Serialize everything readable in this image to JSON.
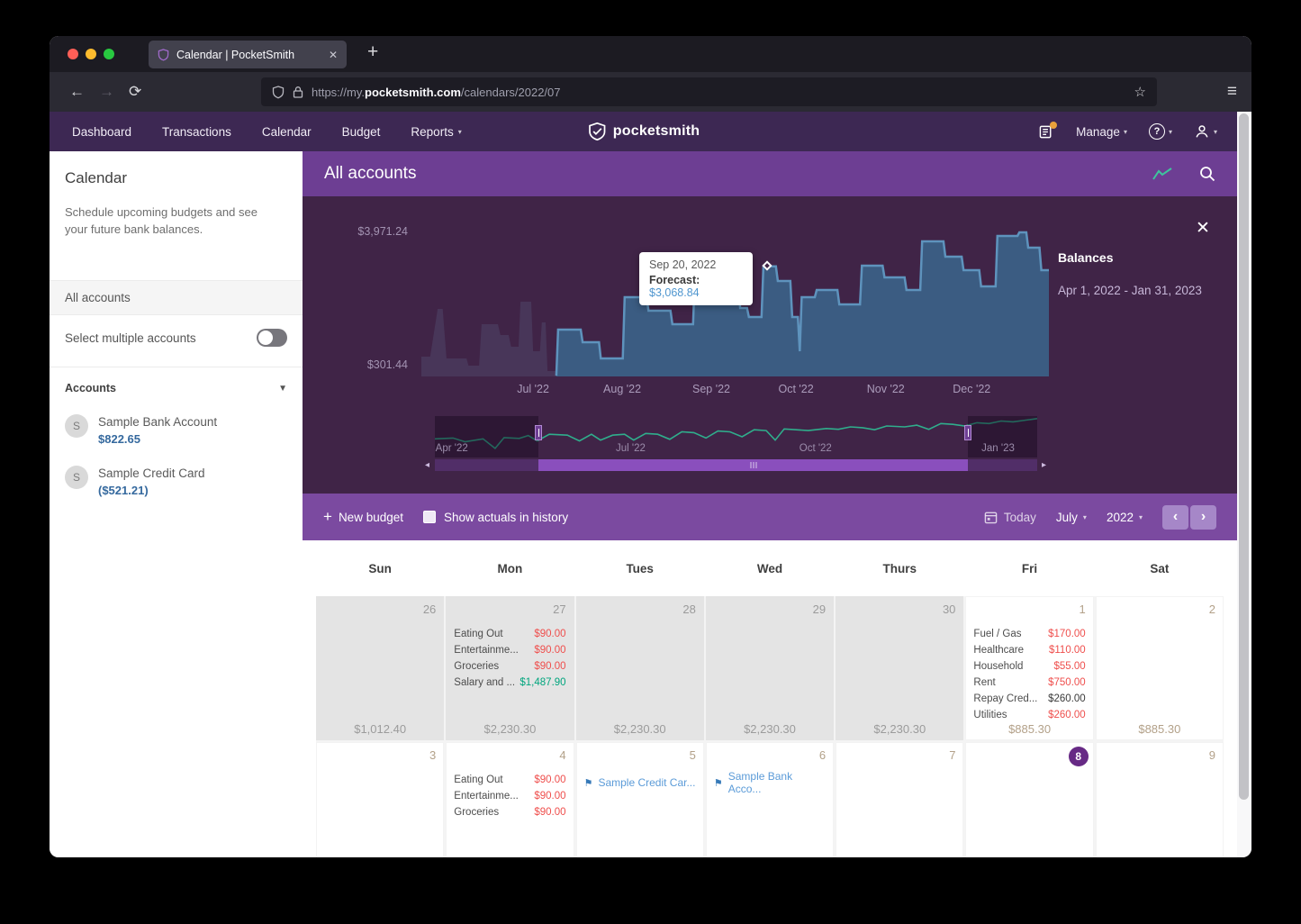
{
  "browser": {
    "tab_title": "Calendar | PocketSmith",
    "tab_close": "✕",
    "url_prefix": "https://my.",
    "url_domain": "pocketsmith.com",
    "url_path": "/calendars/2022/07"
  },
  "nav": {
    "items": [
      "Dashboard",
      "Transactions",
      "Calendar",
      "Budget",
      "Reports"
    ],
    "brand": "pocketsmith",
    "manage_label": "Manage",
    "help_label": "?"
  },
  "sidebar": {
    "title": "Calendar",
    "description": "Schedule upcoming budgets and see your future bank balances.",
    "all_accounts_label": "All accounts",
    "multi_select_label": "Select multiple accounts",
    "accounts_header": "Accounts",
    "accounts": [
      {
        "initial": "S",
        "name": "Sample Bank Account",
        "balance": "$822.65"
      },
      {
        "initial": "S",
        "name": "Sample Credit Card",
        "balance": "($521.21)"
      }
    ]
  },
  "chart_panel": {
    "title": "All accounts",
    "legend_title": "Balances",
    "legend_range": "Apr 1, 2022 - Jan 31, 2023",
    "close_glyph": "✕"
  },
  "chart_data": {
    "type": "area",
    "title": "All accounts balance forecast",
    "ylim": [
      301.44,
      3971.24
    ],
    "y_tick_labels": [
      "$3,971.24",
      "$301.44"
    ],
    "x_ticks": [
      {
        "label": "Jul '22",
        "f": 0.178
      },
      {
        "label": "Aug '22",
        "f": 0.32
      },
      {
        "label": "Sep '22",
        "f": 0.462
      },
      {
        "label": "Oct '22",
        "f": 0.597
      },
      {
        "label": "Nov '22",
        "f": 0.74
      },
      {
        "label": "Dec '22",
        "f": 0.877
      }
    ],
    "series": [
      {
        "name": "History",
        "fill": "#483659",
        "points": [
          [
            0.0,
            800
          ],
          [
            0.014,
            800
          ],
          [
            0.026,
            2000
          ],
          [
            0.034,
            2000
          ],
          [
            0.04,
            754
          ],
          [
            0.072,
            754
          ],
          [
            0.075,
            573
          ],
          [
            0.092,
            573
          ],
          [
            0.096,
            1615
          ],
          [
            0.122,
            1615
          ],
          [
            0.126,
            1343
          ],
          [
            0.139,
            1343
          ],
          [
            0.143,
            1049
          ],
          [
            0.155,
            1049
          ],
          [
            0.158,
            2181
          ],
          [
            0.175,
            2181
          ],
          [
            0.178,
            936
          ],
          [
            0.189,
            936
          ],
          [
            0.192,
            1660
          ],
          [
            0.198,
            1660
          ],
          [
            0.201,
            437
          ],
          [
            0.215,
            437
          ]
        ]
      },
      {
        "name": "Forecast",
        "fill": "#3b5c82",
        "line": "#5e93bd",
        "points": [
          [
            0.215,
            320
          ],
          [
            0.218,
            1479
          ],
          [
            0.254,
            1479
          ],
          [
            0.257,
            1162
          ],
          [
            0.283,
            1162
          ],
          [
            0.286,
            754
          ],
          [
            0.321,
            754
          ],
          [
            0.324,
            2295
          ],
          [
            0.359,
            2295
          ],
          [
            0.362,
            1955
          ],
          [
            0.397,
            1955
          ],
          [
            0.4,
            1615
          ],
          [
            0.433,
            1615
          ],
          [
            0.436,
            2974
          ],
          [
            0.471,
            2974
          ],
          [
            0.474,
            2567
          ],
          [
            0.505,
            2567
          ],
          [
            0.508,
            2023
          ],
          [
            0.519,
            2023
          ],
          [
            0.522,
            1796
          ],
          [
            0.542,
            1796
          ],
          [
            0.545,
            3069
          ],
          [
            0.565,
            3069
          ],
          [
            0.568,
            2702
          ],
          [
            0.588,
            2702
          ],
          [
            0.591,
            1796
          ],
          [
            0.6,
            1796
          ],
          [
            0.603,
            936
          ],
          [
            0.606,
            2295
          ],
          [
            0.627,
            2295
          ],
          [
            0.63,
            2476
          ],
          [
            0.663,
            2476
          ],
          [
            0.666,
            2114
          ],
          [
            0.699,
            2114
          ],
          [
            0.702,
            3087
          ],
          [
            0.735,
            3087
          ],
          [
            0.738,
            2793
          ],
          [
            0.77,
            2793
          ],
          [
            0.773,
            2476
          ],
          [
            0.795,
            2476
          ],
          [
            0.798,
            3699
          ],
          [
            0.832,
            3699
          ],
          [
            0.835,
            3314
          ],
          [
            0.861,
            3314
          ],
          [
            0.864,
            2974
          ],
          [
            0.889,
            2974
          ],
          [
            0.892,
            2567
          ],
          [
            0.915,
            2567
          ],
          [
            0.918,
            3835
          ],
          [
            0.95,
            3835
          ],
          [
            0.953,
            3926
          ],
          [
            0.964,
            3926
          ],
          [
            0.967,
            3540
          ],
          [
            0.985,
            3540
          ],
          [
            0.988,
            2974
          ],
          [
            1.0,
            2974
          ]
        ]
      }
    ],
    "marker": {
      "x": 0.552,
      "value": 3068.84
    },
    "tooltip": {
      "date": "Sep 20, 2022",
      "label": "Forecast:",
      "value": "$3,068.84"
    },
    "minimap": {
      "line_color": "#2fae8c",
      "selection": [
        0.172,
        0.885
      ],
      "labels": [
        {
          "label": "Apr '22",
          "f": 0.028
        },
        {
          "label": "Jul '22",
          "f": 0.325
        },
        {
          "label": "Oct '22",
          "f": 0.632
        },
        {
          "label": "Jan '23",
          "f": 0.935
        }
      ],
      "points": [
        [
          0,
          0.55
        ],
        [
          0.03,
          0.53
        ],
        [
          0.05,
          0.62
        ],
        [
          0.08,
          0.55
        ],
        [
          0.1,
          0.78
        ],
        [
          0.115,
          0.52
        ],
        [
          0.14,
          0.54
        ],
        [
          0.155,
          0.47
        ],
        [
          0.17,
          0.6
        ],
        [
          0.19,
          0.44
        ],
        [
          0.22,
          0.46
        ],
        [
          0.24,
          0.6
        ],
        [
          0.26,
          0.44
        ],
        [
          0.275,
          0.58
        ],
        [
          0.295,
          0.46
        ],
        [
          0.315,
          0.44
        ],
        [
          0.33,
          0.58
        ],
        [
          0.35,
          0.42
        ],
        [
          0.37,
          0.44
        ],
        [
          0.39,
          0.56
        ],
        [
          0.41,
          0.38
        ],
        [
          0.43,
          0.4
        ],
        [
          0.45,
          0.53
        ],
        [
          0.47,
          0.36
        ],
        [
          0.49,
          0.38
        ],
        [
          0.51,
          0.5
        ],
        [
          0.53,
          0.33
        ],
        [
          0.55,
          0.35
        ],
        [
          0.565,
          0.58
        ],
        [
          0.58,
          0.31
        ],
        [
          0.6,
          0.33
        ],
        [
          0.62,
          0.35
        ],
        [
          0.65,
          0.3
        ],
        [
          0.67,
          0.32
        ],
        [
          0.69,
          0.26
        ],
        [
          0.71,
          0.28
        ],
        [
          0.73,
          0.33
        ],
        [
          0.75,
          0.24
        ],
        [
          0.78,
          0.26
        ],
        [
          0.8,
          0.22
        ],
        [
          0.82,
          0.32
        ],
        [
          0.84,
          0.18
        ],
        [
          0.86,
          0.2
        ],
        [
          0.88,
          0.24
        ],
        [
          0.9,
          0.16
        ],
        [
          0.92,
          0.18
        ],
        [
          0.94,
          0.12
        ],
        [
          0.96,
          0.14
        ],
        [
          1.0,
          0.06
        ]
      ]
    }
  },
  "toolbar": {
    "new_budget_label": "New budget",
    "show_actuals_label": "Show actuals in history",
    "today_label": "Today",
    "month": "July",
    "year": "2022"
  },
  "calendar": {
    "day_headers": [
      "Sun",
      "Mon",
      "Tues",
      "Wed",
      "Thurs",
      "Fri",
      "Sat"
    ],
    "weeks": [
      [
        {
          "day": "26",
          "outside": true,
          "total": "$1,012.40"
        },
        {
          "day": "27",
          "outside": true,
          "total": "$2,230.30",
          "items": [
            {
              "label": "Eating Out",
              "amount": "$90.00",
              "kind": "expense"
            },
            {
              "label": "Entertainme...",
              "amount": "$90.00",
              "kind": "expense"
            },
            {
              "label": "Groceries",
              "amount": "$90.00",
              "kind": "expense"
            },
            {
              "label": "Salary and ...",
              "amount": "$1,487.90",
              "kind": "income"
            }
          ]
        },
        {
          "day": "28",
          "outside": true,
          "total": "$2,230.30"
        },
        {
          "day": "29",
          "outside": true,
          "total": "$2,230.30"
        },
        {
          "day": "30",
          "outside": true,
          "total": "$2,230.30"
        },
        {
          "day": "1",
          "total": "$885.30",
          "items": [
            {
              "label": "Fuel / Gas",
              "amount": "$170.00",
              "kind": "expense"
            },
            {
              "label": "Healthcare",
              "amount": "$110.00",
              "kind": "expense"
            },
            {
              "label": "Household",
              "amount": "$55.00",
              "kind": "expense"
            },
            {
              "label": "Rent",
              "amount": "$750.00",
              "kind": "expense"
            },
            {
              "label": "Repay Cred...",
              "amount": "$260.00",
              "kind": "transfer"
            },
            {
              "label": "Utilities",
              "amount": "$260.00",
              "kind": "expense"
            }
          ]
        },
        {
          "day": "2",
          "total": "$885.30"
        }
      ],
      [
        {
          "day": "3"
        },
        {
          "day": "4",
          "items": [
            {
              "label": "Eating Out",
              "amount": "$90.00",
              "kind": "expense"
            },
            {
              "label": "Entertainme...",
              "amount": "$90.00",
              "kind": "expense"
            },
            {
              "label": "Groceries",
              "amount": "$90.00",
              "kind": "expense"
            }
          ]
        },
        {
          "day": "5",
          "flags": [
            "Sample Credit Car..."
          ]
        },
        {
          "day": "6",
          "flags": [
            "Sample Bank Acco..."
          ]
        },
        {
          "day": "7"
        },
        {
          "day": "8",
          "today": true
        },
        {
          "day": "9"
        }
      ]
    ]
  },
  "colors": {
    "nav_purple": "#3d2853",
    "chart_bg": "#402447",
    "header_purple": "#6d3e93",
    "toolbar_purple": "#7b4aa0",
    "forecast_fill": "#3b5c82",
    "forecast_line": "#5e93bd",
    "history_fill": "#483659",
    "mini_line": "#2fae8c",
    "expense_red": "#ef4f4d",
    "income_green": "#00a57d",
    "link_blue": "#5b9bd8",
    "balance_blue": "#35699e",
    "today_badge": "#672a85"
  }
}
